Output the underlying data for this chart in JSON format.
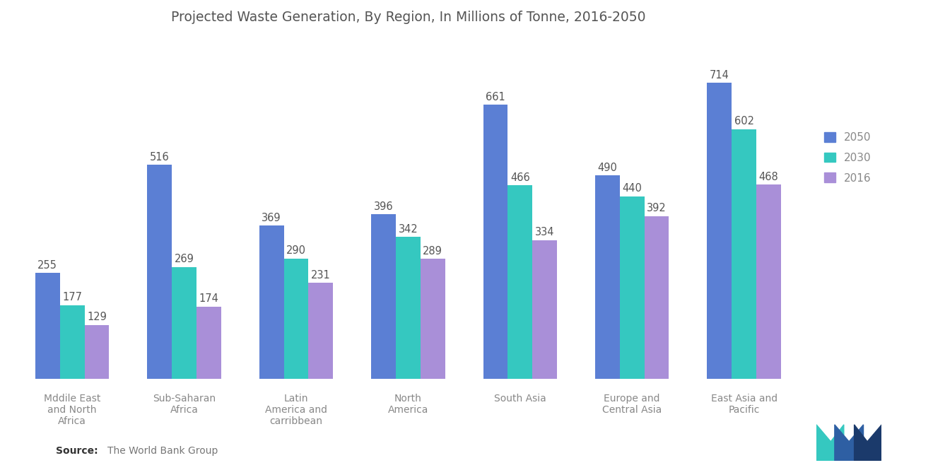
{
  "title": "Projected Waste Generation, By Region, In Millions of Tonne, 2016-2050",
  "categories": [
    "Mddile East\nand North\nAfrica",
    "Sub-Saharan\nAfrica",
    "Latin\nAmerica and\ncarribbean",
    "North\nAmerica",
    "South Asia",
    "Europe and\nCentral Asia",
    "East Asia and\nPacific"
  ],
  "series": {
    "2050": [
      255,
      516,
      369,
      396,
      661,
      490,
      714
    ],
    "2030": [
      177,
      269,
      290,
      342,
      466,
      440,
      602
    ],
    "2016": [
      129,
      174,
      231,
      289,
      334,
      392,
      468
    ]
  },
  "colors": {
    "2050": "#5B7FD4",
    "2030": "#35C8C0",
    "2016": "#A98FD8"
  },
  "legend_labels": [
    "2050",
    "2030",
    "2016"
  ],
  "source_bold": "Source:",
  "source_text": "The World Bank Group",
  "background_color": "#FFFFFF",
  "bar_width": 0.22,
  "ylim": [
    0,
    820
  ],
  "value_fontsize": 10.5,
  "label_fontsize": 10,
  "title_fontsize": 13.5,
  "legend_fontsize": 11,
  "label_color": "#888888",
  "value_color": "#555555",
  "title_color": "#555555"
}
